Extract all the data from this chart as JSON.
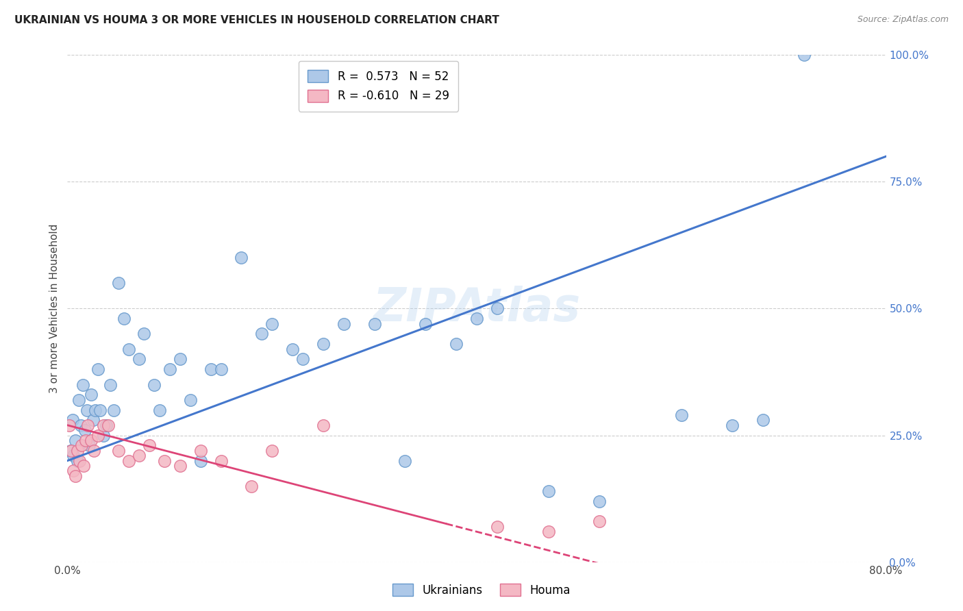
{
  "title": "UKRAINIAN VS HOUMA 3 OR MORE VEHICLES IN HOUSEHOLD CORRELATION CHART",
  "source": "Source: ZipAtlas.com",
  "ylabel": "3 or more Vehicles in Household",
  "xlim": [
    0.0,
    80.0
  ],
  "ylim": [
    0.0,
    100.0
  ],
  "yticks": [
    0,
    25,
    50,
    75,
    100
  ],
  "ytick_labels": [
    "0.0%",
    "25.0%",
    "50.0%",
    "75.0%",
    "100.0%"
  ],
  "xtick_labels": [
    "0.0%",
    "80.0%"
  ],
  "background_color": "#ffffff",
  "grid_color": "#cccccc",
  "watermark": "ZIPAtlas",
  "legend_blue_r": "R =  0.573",
  "legend_blue_n": "N = 52",
  "legend_pink_r": "R = -0.610",
  "legend_pink_n": "N = 29",
  "blue_scatter_color": "#adc8e8",
  "blue_edge_color": "#6699cc",
  "pink_scatter_color": "#f4b8c4",
  "pink_edge_color": "#e07090",
  "line_blue": "#4477cc",
  "line_pink": "#dd4477",
  "blue_x": [
    0.3,
    0.5,
    0.6,
    0.8,
    1.0,
    1.1,
    1.3,
    1.5,
    1.7,
    1.9,
    2.1,
    2.3,
    2.5,
    2.7,
    3.0,
    3.2,
    3.5,
    3.8,
    4.2,
    4.5,
    5.0,
    5.5,
    6.0,
    7.0,
    7.5,
    8.5,
    9.0,
    10.0,
    11.0,
    12.0,
    13.0,
    14.0,
    15.0,
    17.0,
    19.0,
    20.0,
    22.0,
    23.0,
    25.0,
    27.0,
    30.0,
    33.0,
    35.0,
    38.0,
    40.0,
    42.0,
    47.0,
    52.0,
    60.0,
    65.0,
    68.0,
    72.0
  ],
  "blue_y": [
    22.0,
    28.0,
    21.0,
    24.0,
    20.0,
    32.0,
    27.0,
    35.0,
    26.0,
    30.0,
    23.0,
    33.0,
    28.0,
    30.0,
    38.0,
    30.0,
    25.0,
    27.0,
    35.0,
    30.0,
    55.0,
    48.0,
    42.0,
    40.0,
    45.0,
    35.0,
    30.0,
    38.0,
    40.0,
    32.0,
    20.0,
    38.0,
    38.0,
    60.0,
    45.0,
    47.0,
    42.0,
    40.0,
    43.0,
    47.0,
    47.0,
    20.0,
    47.0,
    43.0,
    48.0,
    50.0,
    14.0,
    12.0,
    29.0,
    27.0,
    28.0,
    100.0
  ],
  "pink_x": [
    0.2,
    0.4,
    0.6,
    0.8,
    1.0,
    1.2,
    1.4,
    1.6,
    1.8,
    2.0,
    2.3,
    2.6,
    3.0,
    3.5,
    4.0,
    5.0,
    6.0,
    7.0,
    8.0,
    9.5,
    11.0,
    13.0,
    15.0,
    18.0,
    20.0,
    25.0,
    42.0,
    47.0,
    52.0
  ],
  "pink_y": [
    27.0,
    22.0,
    18.0,
    17.0,
    22.0,
    20.0,
    23.0,
    19.0,
    24.0,
    27.0,
    24.0,
    22.0,
    25.0,
    27.0,
    27.0,
    22.0,
    20.0,
    21.0,
    23.0,
    20.0,
    19.0,
    22.0,
    20.0,
    15.0,
    22.0,
    27.0,
    7.0,
    6.0,
    8.0
  ],
  "blue_trend": [
    0.0,
    20.0,
    80.0,
    80.0
  ],
  "pink_trend": [
    0.0,
    27.0,
    80.0,
    -15.0
  ],
  "pink_solid_end_x": 37.0,
  "title_fontsize": 11,
  "source_fontsize": 9,
  "ylabel_fontsize": 11,
  "tick_fontsize": 11,
  "legend_fontsize": 12
}
